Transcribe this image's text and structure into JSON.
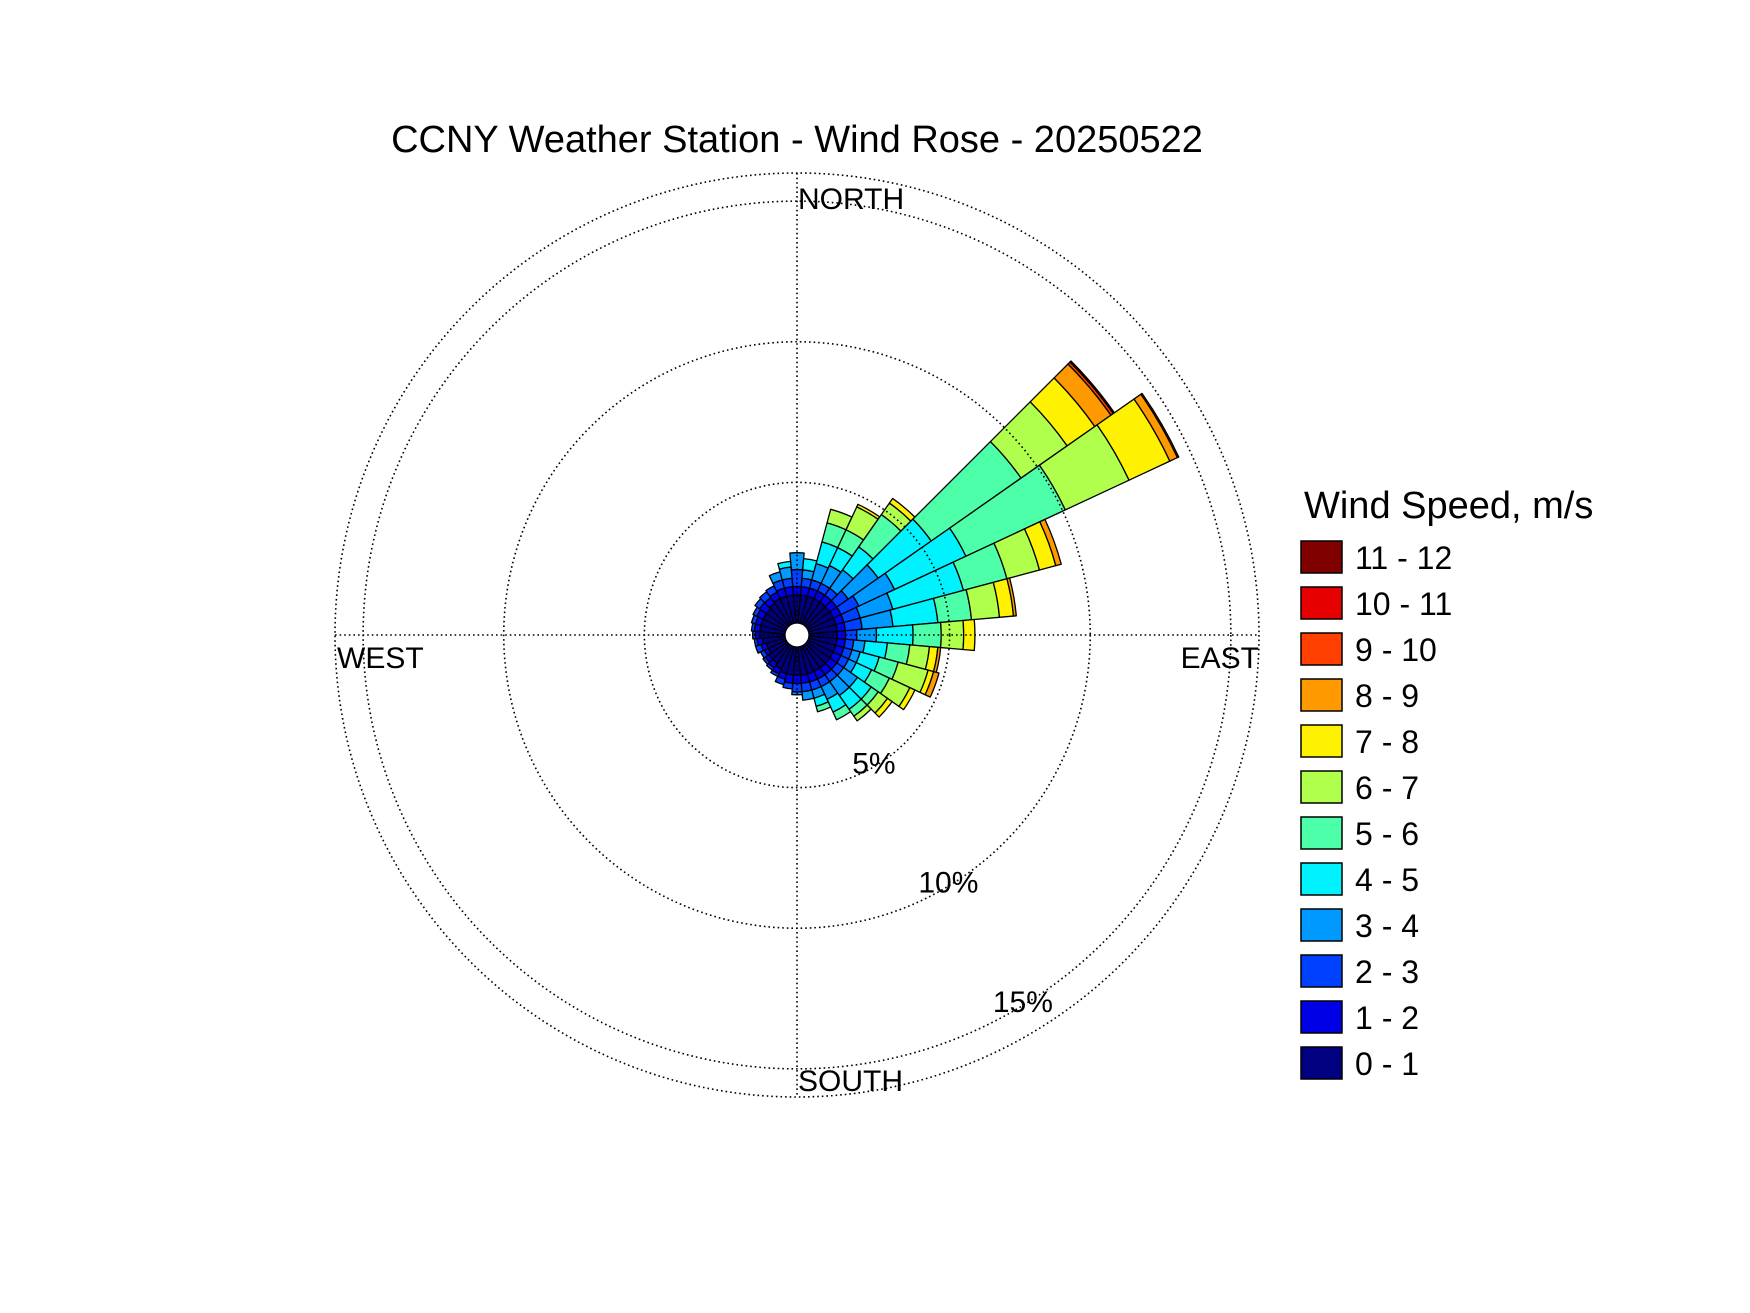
{
  "chart_data": {
    "type": "wind-rose",
    "title": "CCNY Weather Station - Wind Rose - 20250522",
    "direction_labels": {
      "north": "NORTH",
      "south": "SOUTH",
      "east": "EAST",
      "west": "WEST"
    },
    "radial_unit": "percent of observations",
    "radial_max": 16,
    "rings": [
      {
        "value": 5,
        "label": "5%"
      },
      {
        "value": 10,
        "label": "10%"
      },
      {
        "value": 15,
        "label": "15%"
      }
    ],
    "legend_title": "Wind Speed, m/s",
    "legend_placement": "right",
    "speed_bins": [
      {
        "label": "0 - 1",
        "color": "#000080"
      },
      {
        "label": "1 - 2",
        "color": "#0000E6"
      },
      {
        "label": "2 - 3",
        "color": "#0040FF"
      },
      {
        "label": "3 - 4",
        "color": "#0099FF"
      },
      {
        "label": "4 - 5",
        "color": "#00F2FF"
      },
      {
        "label": "5 - 6",
        "color": "#4DFFA8"
      },
      {
        "label": "6 - 7",
        "color": "#B0FF4D"
      },
      {
        "label": "7 - 8",
        "color": "#FFF200"
      },
      {
        "label": "8 - 9",
        "color": "#FF9900"
      },
      {
        "label": "9 - 10",
        "color": "#FF4000"
      },
      {
        "label": "10 - 11",
        "color": "#E60000"
      },
      {
        "label": "11 - 12",
        "color": "#800000"
      }
    ],
    "sector_width_deg": 10,
    "sectors": [
      {
        "direction_deg": 0,
        "cumulative": [
          1.0,
          1.3,
          1.9,
          2.5
        ]
      },
      {
        "direction_deg": 10,
        "cumulative": [
          1.0,
          1.3,
          1.6,
          1.9,
          2.3
        ]
      },
      {
        "direction_deg": 20,
        "cumulative": [
          1.0,
          1.3,
          1.6,
          2.2,
          3.0,
          3.7,
          4.2
        ]
      },
      {
        "direction_deg": 30,
        "cumulative": [
          1.0,
          1.3,
          1.6,
          2.3,
          3.0,
          3.7,
          4.6,
          4.7
        ]
      },
      {
        "direction_deg": 40,
        "cumulative": [
          1.0,
          1.3,
          1.6,
          2.4,
          3.4,
          4.8,
          5.3,
          5.5
        ]
      },
      {
        "direction_deg": 50,
        "cumulative": [
          1.0,
          1.3,
          1.8,
          3.1,
          5.4,
          9.3,
          11.3,
          12.5,
          13.2,
          13.3,
          13.35
        ]
      },
      {
        "direction_deg": 60,
        "cumulative": [
          1.0,
          1.3,
          2.0,
          3.4,
          6.2,
          10.1,
          12.6,
          14.2,
          14.5,
          14.55
        ]
      },
      {
        "direction_deg": 70,
        "cumulative": [
          1.0,
          1.3,
          1.9,
          3.1,
          5.7,
          7.3,
          8.5,
          9.1,
          9.3
        ]
      },
      {
        "direction_deg": 80,
        "cumulative": [
          1.0,
          1.3,
          1.9,
          3.0,
          4.6,
          5.8,
          6.8,
          7.3,
          7.4
        ]
      },
      {
        "direction_deg": 90,
        "cumulative": [
          1.0,
          1.3,
          1.7,
          2.4,
          3.7,
          4.7,
          5.5,
          5.9
        ]
      },
      {
        "direction_deg": 100,
        "cumulative": [
          1.0,
          1.3,
          1.6,
          2.0,
          2.8,
          3.6,
          4.3,
          4.6,
          4.7
        ]
      },
      {
        "direction_deg": 110,
        "cumulative": [
          1.0,
          1.3,
          1.6,
          1.9,
          2.6,
          3.3,
          4.4,
          4.6,
          4.8
        ]
      },
      {
        "direction_deg": 120,
        "cumulative": [
          1.0,
          1.3,
          1.6,
          1.9,
          2.5,
          3.2,
          4.0,
          4.2
        ]
      },
      {
        "direction_deg": 130,
        "cumulative": [
          1.0,
          1.3,
          1.6,
          2.2,
          2.8,
          3.1,
          3.5,
          3.7
        ]
      },
      {
        "direction_deg": 140,
        "cumulative": [
          1.0,
          1.3,
          1.6,
          2.2,
          2.8,
          3.1,
          3.3
        ]
      },
      {
        "direction_deg": 150,
        "cumulative": [
          1.0,
          1.3,
          1.6,
          2.1,
          2.6,
          2.9
        ]
      },
      {
        "direction_deg": 160,
        "cumulative": [
          1.0,
          1.3,
          1.6,
          1.9,
          2.2,
          2.4
        ]
      },
      {
        "direction_deg": 170,
        "cumulative": [
          1.0,
          1.3,
          1.6,
          1.9
        ]
      },
      {
        "direction_deg": 180,
        "cumulative": [
          1.0,
          1.3,
          1.6,
          1.7
        ]
      },
      {
        "direction_deg": 190,
        "cumulative": [
          1.0,
          1.3,
          1.5
        ]
      },
      {
        "direction_deg": 200,
        "cumulative": [
          1.0,
          1.2,
          1.4
        ]
      },
      {
        "direction_deg": 210,
        "cumulative": [
          0.9,
          1.1,
          1.2
        ]
      },
      {
        "direction_deg": 220,
        "cumulative": [
          0.8,
          1.0,
          1.1
        ]
      },
      {
        "direction_deg": 230,
        "cumulative": [
          0.8,
          0.95,
          1.05
        ]
      },
      {
        "direction_deg": 240,
        "cumulative": [
          0.7,
          0.85,
          1.0
        ]
      },
      {
        "direction_deg": 250,
        "cumulative": [
          0.7,
          0.9,
          1.1
        ]
      },
      {
        "direction_deg": 260,
        "cumulative": [
          0.8,
          1.0,
          1.1
        ]
      },
      {
        "direction_deg": 270,
        "cumulative": [
          0.9,
          1.05,
          1.15
        ]
      },
      {
        "direction_deg": 280,
        "cumulative": [
          0.9,
          1.1,
          1.2
        ]
      },
      {
        "direction_deg": 290,
        "cumulative": [
          0.9,
          1.1,
          1.25
        ]
      },
      {
        "direction_deg": 300,
        "cumulative": [
          0.9,
          1.15,
          1.3
        ]
      },
      {
        "direction_deg": 310,
        "cumulative": [
          0.9,
          1.2,
          1.4
        ]
      },
      {
        "direction_deg": 320,
        "cumulative": [
          0.95,
          1.2,
          1.45
        ]
      },
      {
        "direction_deg": 330,
        "cumulative": [
          1.0,
          1.25,
          1.5
        ]
      },
      {
        "direction_deg": 340,
        "cumulative": [
          1.0,
          1.3,
          1.6,
          1.9
        ]
      },
      {
        "direction_deg": 350,
        "cumulative": [
          1.0,
          1.3,
          1.6,
          2.0,
          2.2
        ]
      }
    ]
  }
}
